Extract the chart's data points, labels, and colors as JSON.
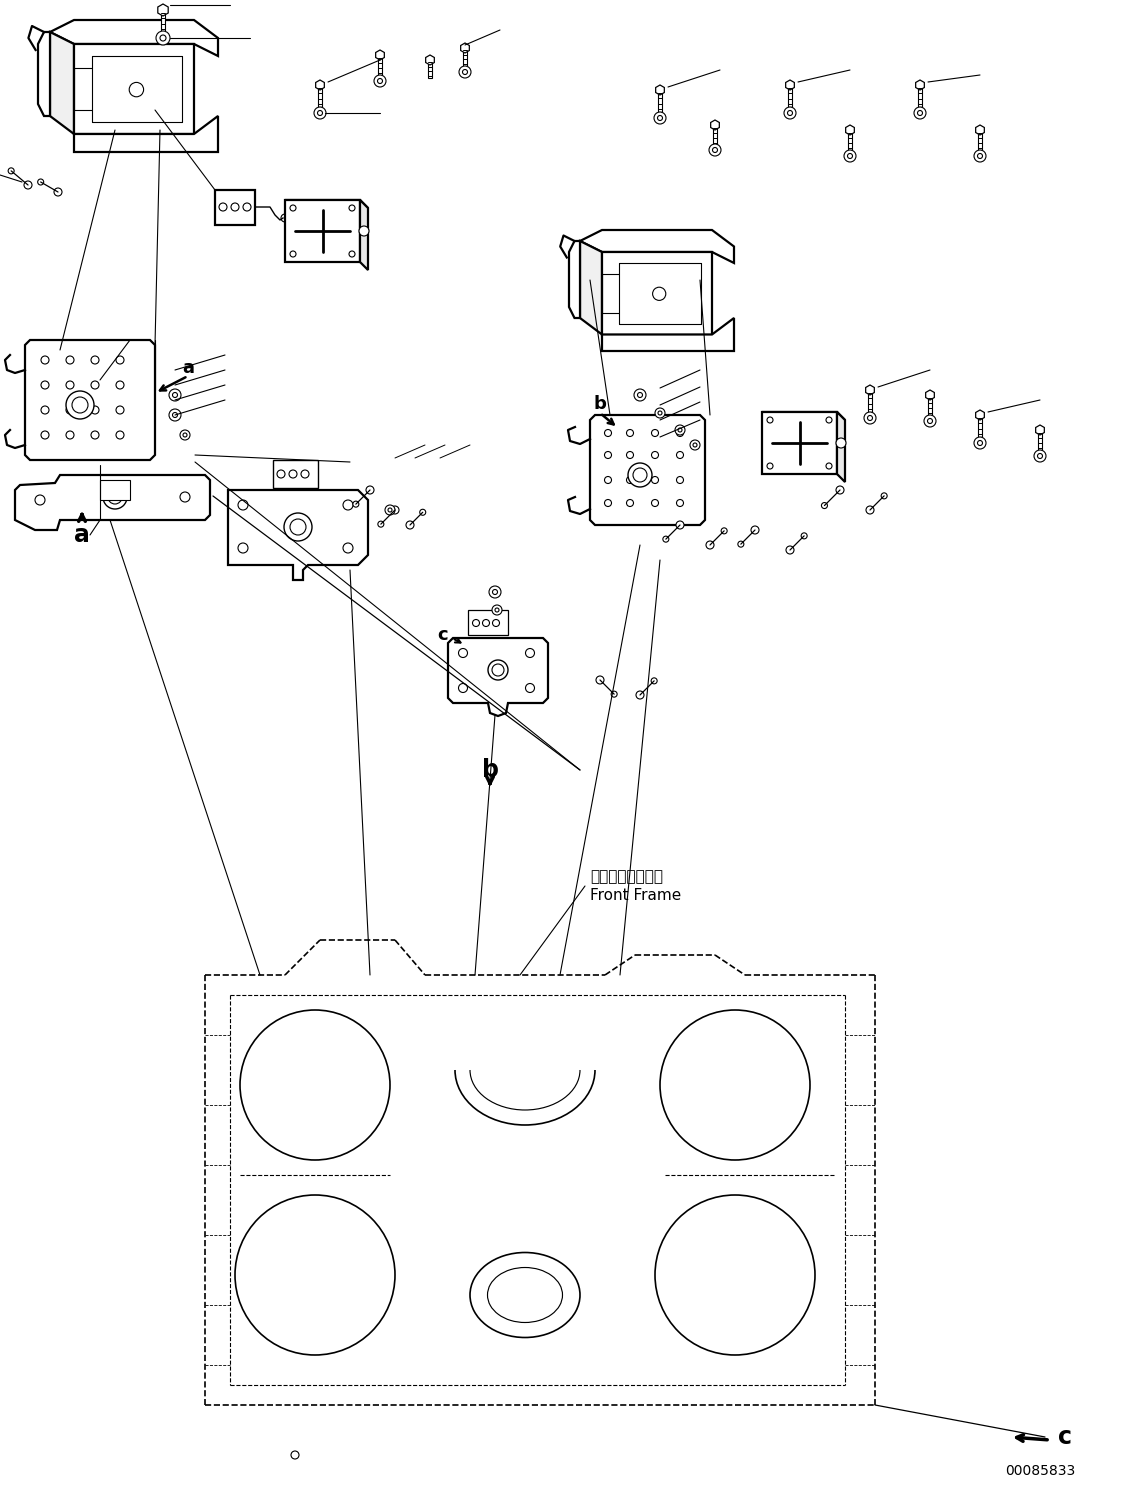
{
  "background_color": "#ffffff",
  "line_color": "#000000",
  "part_number": "00085833",
  "labels": {
    "a_label": "a",
    "b_label": "b",
    "c_label": "c",
    "front_frame_jp": "フロントフレーム",
    "front_frame_en": "Front Frame"
  },
  "fig_width": 11.41,
  "fig_height": 14.92,
  "dpi": 100
}
